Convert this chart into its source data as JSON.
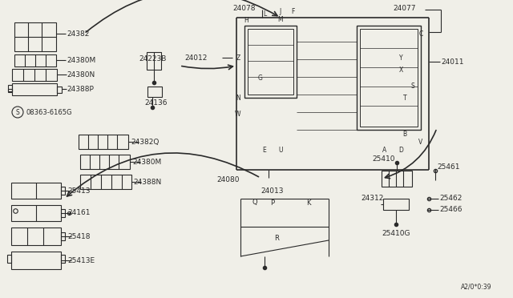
{
  "bg_color": "#f0efe8",
  "line_color": "#2a2a2a",
  "fg": "#2a2a2a",
  "figsize": [
    6.4,
    3.72
  ],
  "dpi": 100,
  "xlim": [
    0,
    640
  ],
  "ylim": [
    0,
    372
  ]
}
